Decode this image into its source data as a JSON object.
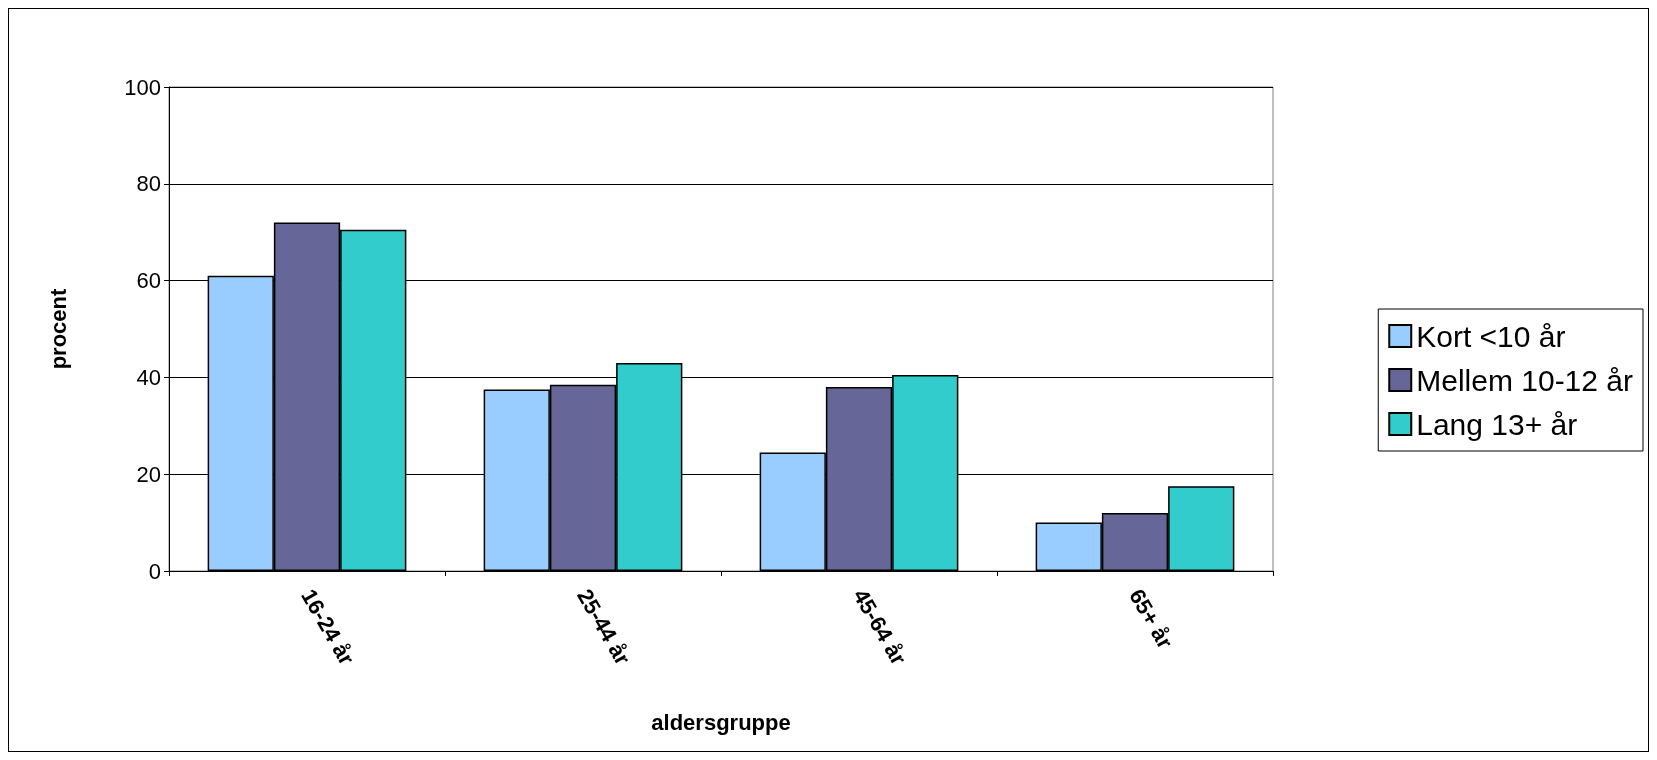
{
  "chart_data": {
    "type": "bar",
    "xlabel": "aldersgruppe",
    "ylabel": "procent",
    "categories": [
      "16-24 år",
      "25-44 år",
      "45-64 år",
      "65+ år"
    ],
    "series": [
      {
        "name": "Kort <10 år",
        "color": "#99ccff",
        "values": [
          61,
          37.5,
          24.5,
          10
        ]
      },
      {
        "name": "Mellem 10-12 år",
        "color": "#666699",
        "values": [
          72,
          38.5,
          38,
          12
        ]
      },
      {
        "name": "Lang 13+ år",
        "color": "#33cccc",
        "values": [
          70.5,
          43,
          40.5,
          17.5
        ]
      }
    ],
    "ylim": [
      0,
      100
    ],
    "yticks": [
      0,
      20,
      40,
      60,
      80,
      100
    ],
    "grid": "y",
    "legend": "right"
  }
}
